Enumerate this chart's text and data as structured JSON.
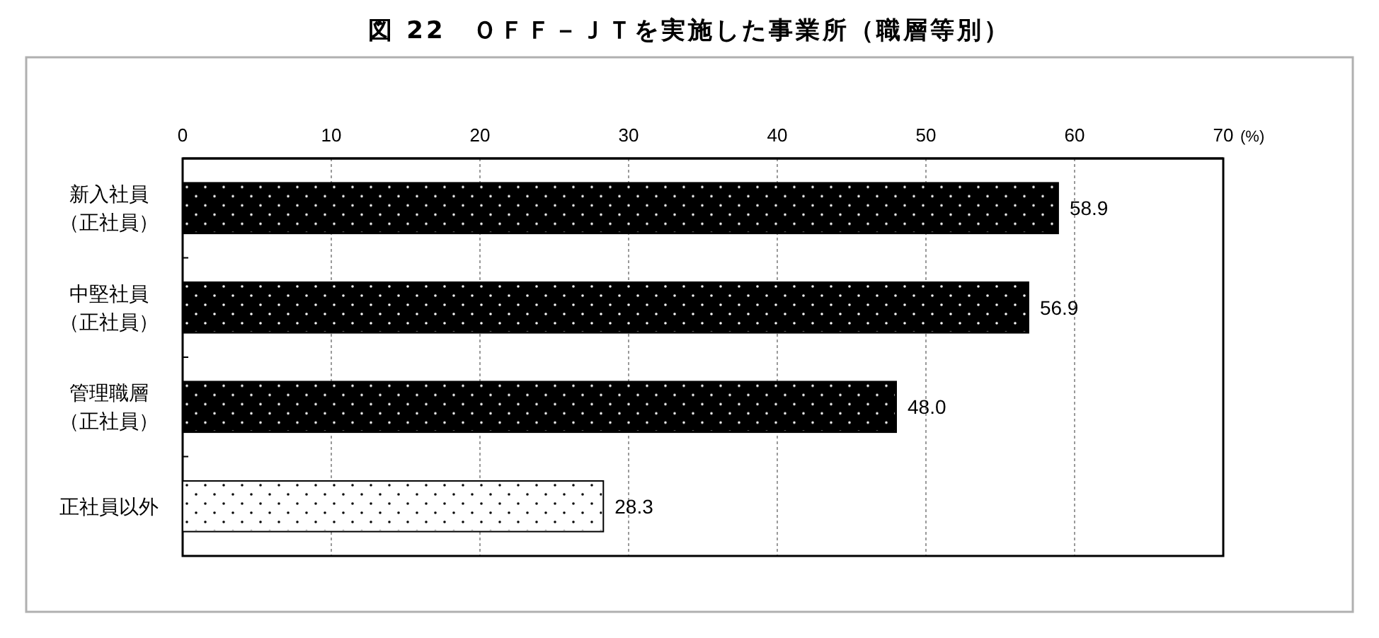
{
  "chart_data": {
    "type": "bar",
    "orientation": "horizontal",
    "title": "図 22　ＯＦＦ－ＪＴを実施した事業所（職層等別）",
    "xlabel": "(%)",
    "categories": [
      "新入社員（正社員）",
      "中堅社員（正社員）",
      "管理職層（正社員）",
      "正社員以外"
    ],
    "values": [
      58.9,
      56.9,
      48.0,
      28.3
    ],
    "value_labels": [
      "58.9",
      "56.9",
      "48.0",
      "28.3"
    ],
    "colors": [
      "#000000",
      "#000000",
      "#000000",
      "#ffffff"
    ],
    "xlim": [
      0,
      70
    ],
    "xticks": [
      0,
      10,
      20,
      30,
      40,
      50,
      60,
      70
    ],
    "grid": "x"
  }
}
